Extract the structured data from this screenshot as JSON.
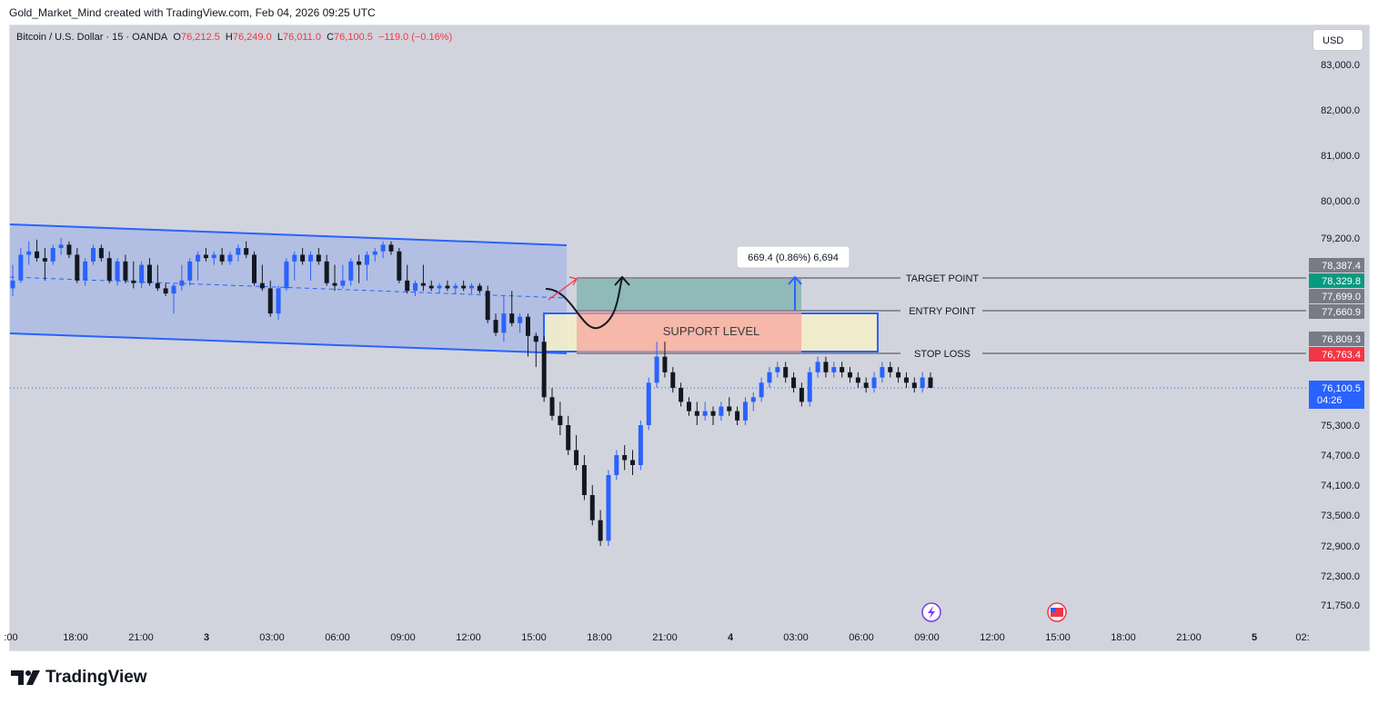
{
  "credit": "Gold_Market_Mind created with TradingView.com, Feb 04, 2026 09:25 UTC",
  "legend": {
    "symbol": "Bitcoin / U.S. Dollar · 15 · OANDA",
    "o_label": "O",
    "o": "76,212.5",
    "h_label": "H",
    "h": "76,249.0",
    "l_label": "L",
    "l": "76,011.0",
    "c_label": "C",
    "c": "76,100.5",
    "change": "−119.0 (−0.16%)"
  },
  "currency_button": "USD",
  "brand": "TradingView",
  "colors": {
    "up": "#2962ff",
    "down": "#131722",
    "channel_fill": "#2962ff",
    "target_zone": "#3d9b8f",
    "stop_zone": "#f7a29a",
    "support_box": "#f6f0c8",
    "last_price": "#2962ff",
    "target_tag": "#089981",
    "stop_tag": "#f23645",
    "gray_tag": "#787b86"
  },
  "chart_data": {
    "type": "candlestick",
    "title": "Bitcoin / U.S. Dollar · 15 · OANDA",
    "y_axis_ticks": [
      83000,
      82000,
      81000,
      80000,
      79200,
      75300,
      74700,
      74100,
      73500,
      72900,
      72300,
      71750
    ],
    "y_axis_tick_labels": [
      "83,000.0",
      "82,000.0",
      "81,000.0",
      "80,000.0",
      "79,200.0",
      "75,300.0",
      "74,700.0",
      "74,100.0",
      "73,500.0",
      "72,900.0",
      "72,300.0",
      "71,750.0"
    ],
    "x_axis_ticks": [
      ":00",
      "18:00",
      "21:00",
      "3",
      "03:00",
      "06:00",
      "09:00",
      "12:00",
      "15:00",
      "18:00",
      "21:00",
      "4",
      "03:00",
      "06:00",
      "09:00",
      "12:00",
      "15:00",
      "18:00",
      "21:00",
      "5",
      "02:"
    ],
    "y_range": [
      71500,
      83500
    ],
    "last_price": 76100.5,
    "last_price_label": "76,100.5",
    "countdown": "04:26",
    "levels": [
      {
        "name": "TARGET POINT",
        "value": 78329.8,
        "label": "78,329.8",
        "color": "#089981"
      },
      {
        "name": "ENTRY POINT",
        "value": 77660.9,
        "label": "77,660.9",
        "color": "#787b86"
      },
      {
        "name": "STOP LOSS",
        "value": 76763.4,
        "label": "76,763.4",
        "color": "#f23645"
      }
    ],
    "zone_labels": [
      {
        "label": "78,387.4",
        "value": 78387.4
      },
      {
        "label": "77,699.0",
        "value": 77699.0
      },
      {
        "label": "76,809.3",
        "value": 76809.3
      }
    ],
    "annotations": {
      "support_level": "SUPPORT LEVEL",
      "measure": "669.4 (0.86%) 6,694"
    },
    "candles": [
      [
        78000,
        78400,
        77700,
        78300
      ],
      [
        78300,
        78900,
        78200,
        78700
      ],
      [
        78700,
        79100,
        78400,
        78800
      ],
      [
        78800,
        79150,
        78500,
        78600
      ],
      [
        78600,
        78900,
        78300,
        78500
      ],
      [
        78500,
        79000,
        78400,
        78900
      ],
      [
        78900,
        79200,
        78700,
        79000
      ],
      [
        79000,
        79100,
        78600,
        78700
      ],
      [
        78700,
        78900,
        78200,
        78300
      ],
      [
        78300,
        78600,
        78100,
        78500
      ],
      [
        78500,
        79000,
        78400,
        78900
      ],
      [
        78900,
        79000,
        78500,
        78600
      ],
      [
        78600,
        78800,
        78200,
        78300
      ],
      [
        78300,
        78600,
        78100,
        78500
      ],
      [
        78500,
        78700,
        78200,
        78300
      ],
      [
        78300,
        78500,
        78000,
        78200
      ],
      [
        78200,
        78500,
        78000,
        78400
      ],
      [
        78400,
        78600,
        78100,
        78200
      ],
      [
        78200,
        78400,
        77900,
        78000
      ],
      [
        78000,
        78200,
        77700,
        77800
      ],
      [
        77800,
        78200,
        77600,
        78100
      ],
      [
        78100,
        78400,
        77900,
        78300
      ],
      [
        78300,
        78600,
        78100,
        78500
      ],
      [
        78500,
        78800,
        78300,
        78700
      ],
      [
        78700,
        78900,
        78500,
        78600
      ],
      [
        78600,
        78800,
        78400,
        78700
      ],
      [
        78700,
        78900,
        78400,
        78500
      ],
      [
        78500,
        78800,
        78400,
        78700
      ],
      [
        78700,
        79000,
        78500,
        78900
      ],
      [
        78900,
        79100,
        78600,
        78700
      ],
      [
        78700,
        78800,
        78100,
        78200
      ],
      [
        78200,
        78400,
        77900,
        78000
      ],
      [
        78000,
        78300,
        77500,
        77600
      ],
      [
        77600,
        78100,
        77400,
        78000
      ],
      [
        78000,
        78600,
        77900,
        78500
      ],
      [
        78500,
        78800,
        78300,
        78700
      ],
      [
        78700,
        78900,
        78400,
        78500
      ],
      [
        78500,
        78800,
        78300,
        78700
      ],
      [
        78700,
        78900,
        78400,
        78500
      ],
      [
        78500,
        78700,
        78100,
        78200
      ],
      [
        78200,
        78400,
        77900,
        78100
      ],
      [
        78100,
        78400,
        78000,
        78300
      ],
      [
        78300,
        78600,
        78100,
        78500
      ],
      [
        78500,
        78700,
        78200,
        78400
      ],
      [
        78400,
        78800,
        78300,
        78700
      ],
      [
        78700,
        78900,
        78500,
        78800
      ],
      [
        78800,
        79100,
        78600,
        79000
      ],
      [
        79000,
        79100,
        78700,
        78800
      ],
      [
        78800,
        78900,
        78200,
        78300
      ],
      [
        78300,
        78400,
        77800,
        77900
      ],
      [
        77900,
        78300,
        77700,
        78200
      ],
      [
        78200,
        78400,
        77900,
        78100
      ],
      [
        78100,
        78300,
        77900,
        78000
      ],
      [
        78000,
        78200,
        77800,
        78100
      ],
      [
        78100,
        78300,
        77900,
        78000
      ],
      [
        78000,
        78200,
        77800,
        78100
      ],
      [
        78100,
        78300,
        77900,
        78000
      ],
      [
        78000,
        78200,
        77800,
        78100
      ],
      [
        78100,
        78200,
        77800,
        77900
      ],
      [
        77900,
        78100,
        77300,
        77400
      ],
      [
        77400,
        77600,
        76900,
        77000
      ],
      [
        77000,
        77700,
        76800,
        77600
      ],
      [
        77600,
        77900,
        77200,
        77300
      ],
      [
        77300,
        77600,
        77000,
        77500
      ],
      [
        77500,
        77600,
        76700,
        76900
      ],
      [
        76900,
        77000,
        76500,
        76800
      ],
      [
        76800,
        76900,
        75800,
        75900
      ],
      [
        75900,
        76100,
        75400,
        75500
      ],
      [
        75500,
        75800,
        75100,
        75300
      ],
      [
        75300,
        75500,
        74700,
        74800
      ],
      [
        74800,
        75100,
        74400,
        74500
      ],
      [
        74500,
        74700,
        73800,
        73900
      ],
      [
        73900,
        74100,
        73300,
        73400
      ],
      [
        73400,
        73600,
        72900,
        73000
      ],
      [
        73000,
        74400,
        72900,
        74300
      ],
      [
        74300,
        74800,
        74200,
        74700
      ],
      [
        74700,
        74900,
        74400,
        74600
      ],
      [
        74600,
        74800,
        74300,
        74500
      ],
      [
        74500,
        75400,
        74400,
        75300
      ],
      [
        75300,
        76300,
        75200,
        76200
      ],
      [
        76200,
        76800,
        76100,
        76700
      ],
      [
        76700,
        76800,
        76300,
        76400
      ],
      [
        76400,
        76500,
        76000,
        76100
      ],
      [
        76100,
        76200,
        75700,
        75800
      ],
      [
        75800,
        75900,
        75500,
        75600
      ],
      [
        75600,
        75800,
        75300,
        75500
      ],
      [
        75500,
        75800,
        75400,
        75600
      ],
      [
        75600,
        75700,
        75300,
        75500
      ],
      [
        75500,
        75800,
        75400,
        75700
      ],
      [
        75700,
        75900,
        75500,
        75600
      ],
      [
        75600,
        75700,
        75300,
        75400
      ],
      [
        75400,
        75900,
        75300,
        75800
      ],
      [
        75800,
        76000,
        75600,
        75900
      ],
      [
        75900,
        76300,
        75800,
        76200
      ],
      [
        76200,
        76500,
        76100,
        76400
      ],
      [
        76400,
        76600,
        76300,
        76500
      ],
      [
        76500,
        76600,
        76200,
        76300
      ],
      [
        76300,
        76400,
        76000,
        76100
      ],
      [
        76100,
        76200,
        75700,
        75800
      ],
      [
        75800,
        76500,
        75700,
        76400
      ],
      [
        76400,
        76700,
        76300,
        76600
      ],
      [
        76600,
        76700,
        76300,
        76400
      ],
      [
        76400,
        76600,
        76300,
        76500
      ],
      [
        76500,
        76600,
        76300,
        76400
      ],
      [
        76400,
        76500,
        76200,
        76300
      ],
      [
        76300,
        76400,
        76100,
        76200
      ],
      [
        76200,
        76300,
        76000,
        76100
      ],
      [
        76100,
        76400,
        76000,
        76300
      ],
      [
        76300,
        76600,
        76200,
        76500
      ],
      [
        76500,
        76600,
        76300,
        76400
      ],
      [
        76400,
        76500,
        76200,
        76300
      ],
      [
        76300,
        76400,
        76100,
        76200
      ],
      [
        76200,
        76300,
        76000,
        76100
      ],
      [
        76100,
        76400,
        76000,
        76300
      ],
      [
        76300,
        76400,
        76100,
        76100
      ]
    ]
  }
}
